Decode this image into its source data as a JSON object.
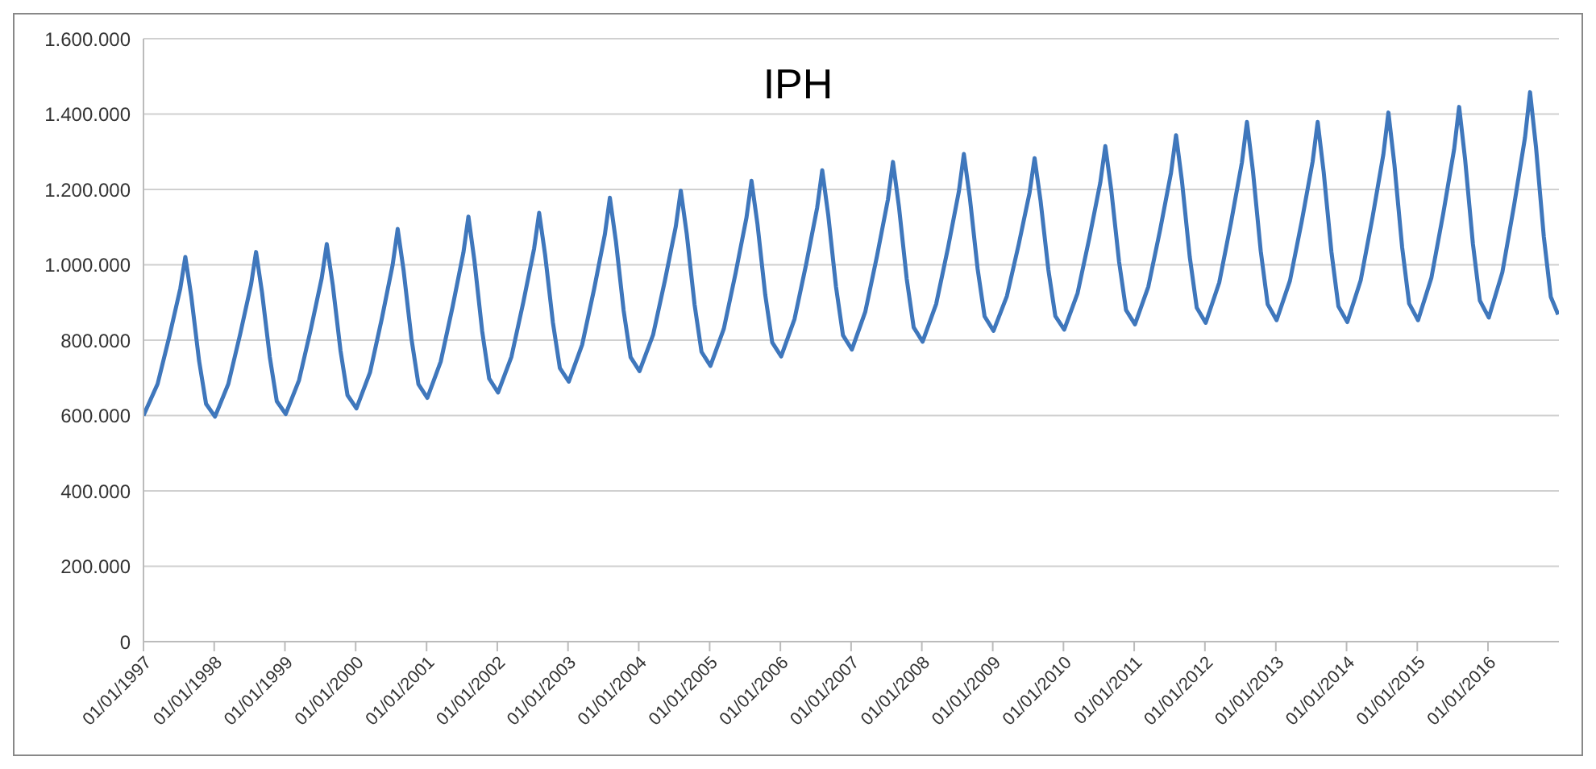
{
  "chart_data": {
    "type": "line",
    "title": "IPH",
    "series": [
      {
        "color": "#3f77bc",
        "x": [
          "1997-01-01",
          "1997-03-15",
          "1997-05-15",
          "1997-07-10",
          "1997-08-05",
          "1997-09-05",
          "1997-10-15",
          "1997-11-20",
          "1998-01-05",
          "1998-03-15",
          "1998-05-15",
          "1998-07-10",
          "1998-08-05",
          "1998-09-05",
          "1998-10-15",
          "1998-11-20",
          "1999-01-05",
          "1999-03-15",
          "1999-05-15",
          "1999-07-10",
          "1999-08-05",
          "1999-09-05",
          "1999-10-15",
          "1999-11-20",
          "2000-01-05",
          "2000-03-15",
          "2000-05-15",
          "2000-07-10",
          "2000-08-05",
          "2000-09-05",
          "2000-10-15",
          "2000-11-20",
          "2001-01-05",
          "2001-03-15",
          "2001-05-15",
          "2001-07-10",
          "2001-08-05",
          "2001-09-05",
          "2001-10-15",
          "2001-11-20",
          "2002-01-05",
          "2002-03-15",
          "2002-05-15",
          "2002-07-10",
          "2002-08-05",
          "2002-09-05",
          "2002-10-15",
          "2002-11-20",
          "2003-01-05",
          "2003-03-15",
          "2003-05-15",
          "2003-07-10",
          "2003-08-05",
          "2003-09-05",
          "2003-10-15",
          "2003-11-20",
          "2004-01-05",
          "2004-03-15",
          "2004-05-15",
          "2004-07-10",
          "2004-08-05",
          "2004-09-05",
          "2004-10-15",
          "2004-11-20",
          "2005-01-05",
          "2005-03-15",
          "2005-05-15",
          "2005-07-10",
          "2005-08-05",
          "2005-09-05",
          "2005-10-15",
          "2005-11-20",
          "2006-01-05",
          "2006-03-15",
          "2006-05-15",
          "2006-07-10",
          "2006-08-05",
          "2006-09-05",
          "2006-10-15",
          "2006-11-20",
          "2007-01-05",
          "2007-03-15",
          "2007-05-15",
          "2007-07-10",
          "2007-08-05",
          "2007-09-05",
          "2007-10-15",
          "2007-11-20",
          "2008-01-05",
          "2008-03-15",
          "2008-05-15",
          "2008-07-10",
          "2008-08-05",
          "2008-09-05",
          "2008-10-15",
          "2008-11-20",
          "2009-01-05",
          "2009-03-15",
          "2009-05-15",
          "2009-07-10",
          "2009-08-05",
          "2009-09-05",
          "2009-10-15",
          "2009-11-20",
          "2010-01-05",
          "2010-03-15",
          "2010-05-15",
          "2010-07-10",
          "2010-08-05",
          "2010-09-05",
          "2010-10-15",
          "2010-11-20",
          "2011-01-05",
          "2011-03-15",
          "2011-05-15",
          "2011-07-10",
          "2011-08-05",
          "2011-09-05",
          "2011-10-15",
          "2011-11-20",
          "2012-01-05",
          "2012-03-15",
          "2012-05-15",
          "2012-07-10",
          "2012-08-05",
          "2012-09-05",
          "2012-10-15",
          "2012-11-20",
          "2013-01-05",
          "2013-03-15",
          "2013-05-15",
          "2013-07-10",
          "2013-08-05",
          "2013-09-05",
          "2013-10-15",
          "2013-11-20",
          "2014-01-05",
          "2014-03-15",
          "2014-05-15",
          "2014-07-10",
          "2014-08-05",
          "2014-09-05",
          "2014-10-15",
          "2014-11-20",
          "2015-01-05",
          "2015-03-15",
          "2015-05-15",
          "2015-07-10",
          "2015-08-05",
          "2015-09-05",
          "2015-10-15",
          "2015-11-20",
          "2016-01-05",
          "2016-03-15",
          "2016-05-15",
          "2016-07-10",
          "2016-08-05",
          "2016-09-05",
          "2016-10-15",
          "2016-11-20",
          "2016-12-28"
        ],
        "values": [
          600000,
          684000,
          811000,
          937000,
          1021000,
          915000,
          745000,
          631000,
          597000,
          684000,
          816000,
          947000,
          1034000,
          926000,
          755000,
          638000,
          604000,
          694000,
          830000,
          965000,
          1055000,
          946000,
          772000,
          654000,
          619000,
          714000,
          857000,
          1000000,
          1095000,
          983000,
          804000,
          683000,
          647000,
          743000,
          888000,
          1032000,
          1128000,
          1011000,
          824000,
          698000,
          661000,
          756000,
          900000,
          1043000,
          1138000,
          1026000,
          847000,
          726000,
          690000,
          788000,
          934000,
          1080000,
          1178000,
          1063000,
          879000,
          755000,
          718000,
          814000,
          958000,
          1101000,
          1197000,
          1081000,
          895000,
          769000,
          732000,
          830000,
          978000,
          1125000,
          1223000,
          1107000,
          920000,
          794000,
          757000,
          856000,
          1004000,
          1152000,
          1251000,
          1132000,
          942000,
          813000,
          775000,
          875000,
          1024000,
          1173000,
          1273000,
          1154000,
          963000,
          834000,
          796000,
          896000,
          1045000,
          1194000,
          1294000,
          1177000,
          989000,
          863000,
          825000,
          917000,
          1054000,
          1191000,
          1283000,
          1169000,
          987000,
          864000,
          828000,
          925000,
          1072000,
          1218000,
          1315000,
          1197000,
          1008000,
          880000,
          842000,
          942000,
          1093000,
          1244000,
          1344000,
          1220000,
          1020000,
          886000,
          846000,
          953000,
          1113000,
          1272000,
          1379000,
          1248000,
          1037000,
          895000,
          853000,
          958000,
          1116000,
          1274000,
          1379000,
          1246000,
          1034000,
          890000,
          848000,
          959000,
          1126000,
          1293000,
          1404000,
          1266000,
          1046000,
          897000,
          853000,
          966000,
          1136000,
          1306000,
          1419000,
          1279000,
          1056000,
          905000,
          860000,
          980000,
          1159000,
          1338000,
          1458000,
          1311000,
          1075000,
          915000,
          868000
        ]
      }
    ],
    "xlim": [
      "1997-01-01",
      "2017-01-01"
    ],
    "xticks": [
      {
        "value": "1997-01-01",
        "label": "01/01/1997"
      },
      {
        "value": "1998-01-01",
        "label": "01/01/1998"
      },
      {
        "value": "1999-01-01",
        "label": "01/01/1999"
      },
      {
        "value": "2000-01-01",
        "label": "01/01/2000"
      },
      {
        "value": "2001-01-01",
        "label": "01/01/2001"
      },
      {
        "value": "2002-01-01",
        "label": "01/01/2002"
      },
      {
        "value": "2003-01-01",
        "label": "01/01/2003"
      },
      {
        "value": "2004-01-01",
        "label": "01/01/2004"
      },
      {
        "value": "2005-01-01",
        "label": "01/01/2005"
      },
      {
        "value": "2006-01-01",
        "label": "01/01/2006"
      },
      {
        "value": "2007-01-01",
        "label": "01/01/2007"
      },
      {
        "value": "2008-01-01",
        "label": "01/01/2008"
      },
      {
        "value": "2009-01-01",
        "label": "01/01/2009"
      },
      {
        "value": "2010-01-01",
        "label": "01/01/2010"
      },
      {
        "value": "2011-01-01",
        "label": "01/01/2011"
      },
      {
        "value": "2012-01-01",
        "label": "01/01/2012"
      },
      {
        "value": "2013-01-01",
        "label": "01/01/2013"
      },
      {
        "value": "2014-01-01",
        "label": "01/01/2014"
      },
      {
        "value": "2015-01-01",
        "label": "01/01/2015"
      },
      {
        "value": "2016-01-01",
        "label": "01/01/2016"
      }
    ],
    "ylim": [
      0,
      1600000
    ],
    "yticks": [
      0,
      {
        "value": 200000,
        "label": "200.000"
      },
      {
        "value": 400000,
        "label": "400.000"
      },
      {
        "value": 600000,
        "label": "600.000"
      },
      {
        "value": 800000,
        "label": "800.000"
      },
      {
        "value": 1000000,
        "label": "1.000.000"
      },
      {
        "value": 1200000,
        "label": "1.200.000"
      },
      {
        "value": 1400000,
        "label": "1.400.000"
      },
      {
        "value": 1600000,
        "label": "1.600.000"
      }
    ],
    "grid": "y",
    "legend": false
  }
}
